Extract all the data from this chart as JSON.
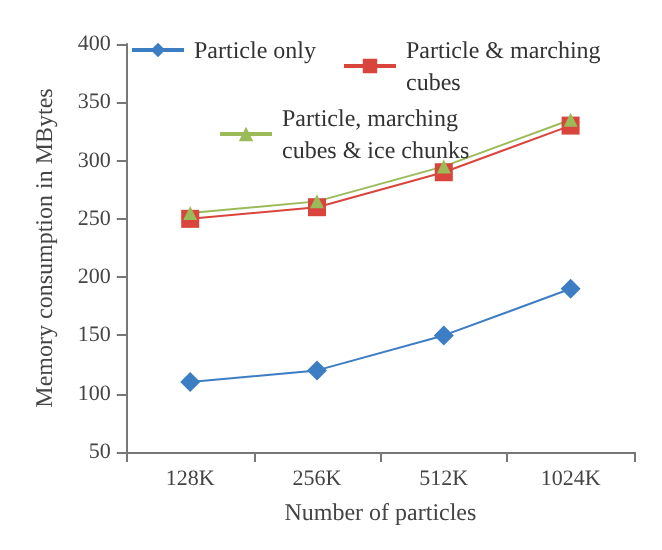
{
  "chart_data": {
    "type": "line",
    "xlabel": "Number of particles",
    "ylabel": "Memory consumption in MBytes",
    "categories": [
      "128K",
      "256K",
      "512K",
      "1024K"
    ],
    "ylim": [
      50,
      400
    ],
    "yticks": [
      50,
      100,
      150,
      200,
      250,
      300,
      350,
      400
    ],
    "grid": false,
    "legend": "top",
    "series": [
      {
        "name": "Particle only",
        "color": "#3c7dc4",
        "marker": "diamond",
        "values": [
          110,
          120,
          150,
          190
        ]
      },
      {
        "name": "Particle & marching cubes",
        "color": "#d9453c",
        "marker": "square",
        "values": [
          250,
          260,
          290,
          330
        ]
      },
      {
        "name": "Particle, marching cubes & ice chunks",
        "color": "#9bbb59",
        "marker": "triangle",
        "values": [
          255,
          265,
          295,
          335
        ]
      }
    ]
  }
}
